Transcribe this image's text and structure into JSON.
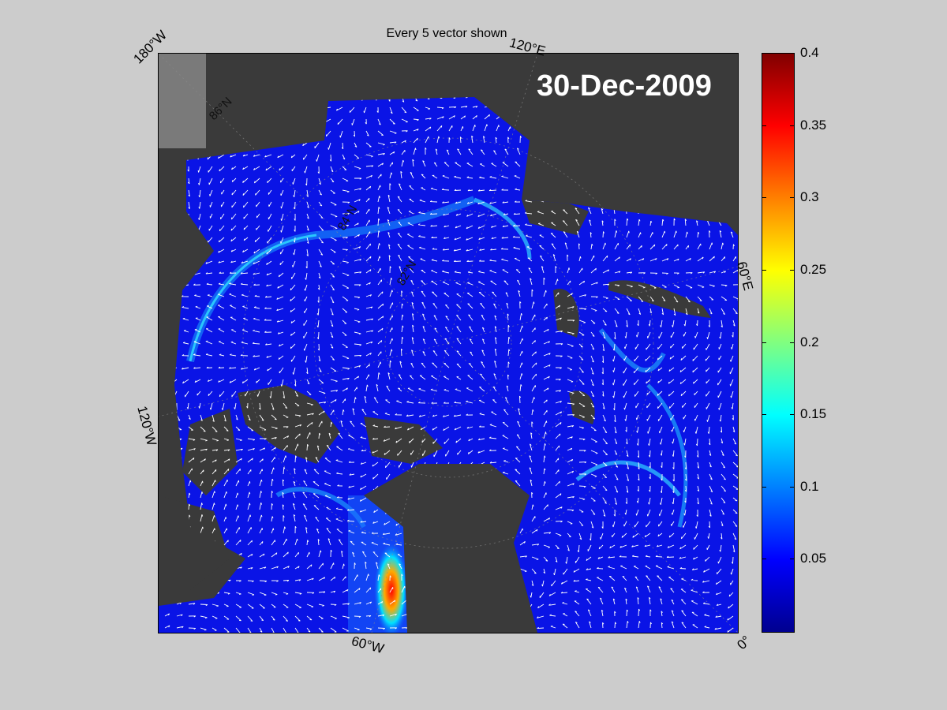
{
  "plot": {
    "title": "Every 5 vector shown",
    "date": "30-Dec-2009"
  },
  "map_labels": {
    "lon_180w": "180°W",
    "lon_120e": "120°E",
    "lon_60e": "60°E",
    "lon_120w": "120°W",
    "lon_60w": "60°W",
    "lon_0": "0°",
    "lat_86n": "86°N",
    "lat_84n": "84°N",
    "lat_82n": "82°N"
  },
  "colorbar": {
    "ticks": [
      "0.4",
      "0.35",
      "0.3",
      "0.25",
      "0.2",
      "0.15",
      "0.1",
      "0.05"
    ],
    "tick_values": [
      0.4,
      0.35,
      0.3,
      0.25,
      0.2,
      0.15,
      0.1,
      0.05
    ],
    "range": [
      0,
      0.4
    ],
    "colormap": "jet"
  },
  "colors": {
    "background": "#cccccc",
    "land": "#3a3a3a",
    "ice_low": "#0a14e6",
    "ice_mid": "#1a8cff",
    "ice_high": "#ff2000",
    "vector": "#ffffff"
  }
}
